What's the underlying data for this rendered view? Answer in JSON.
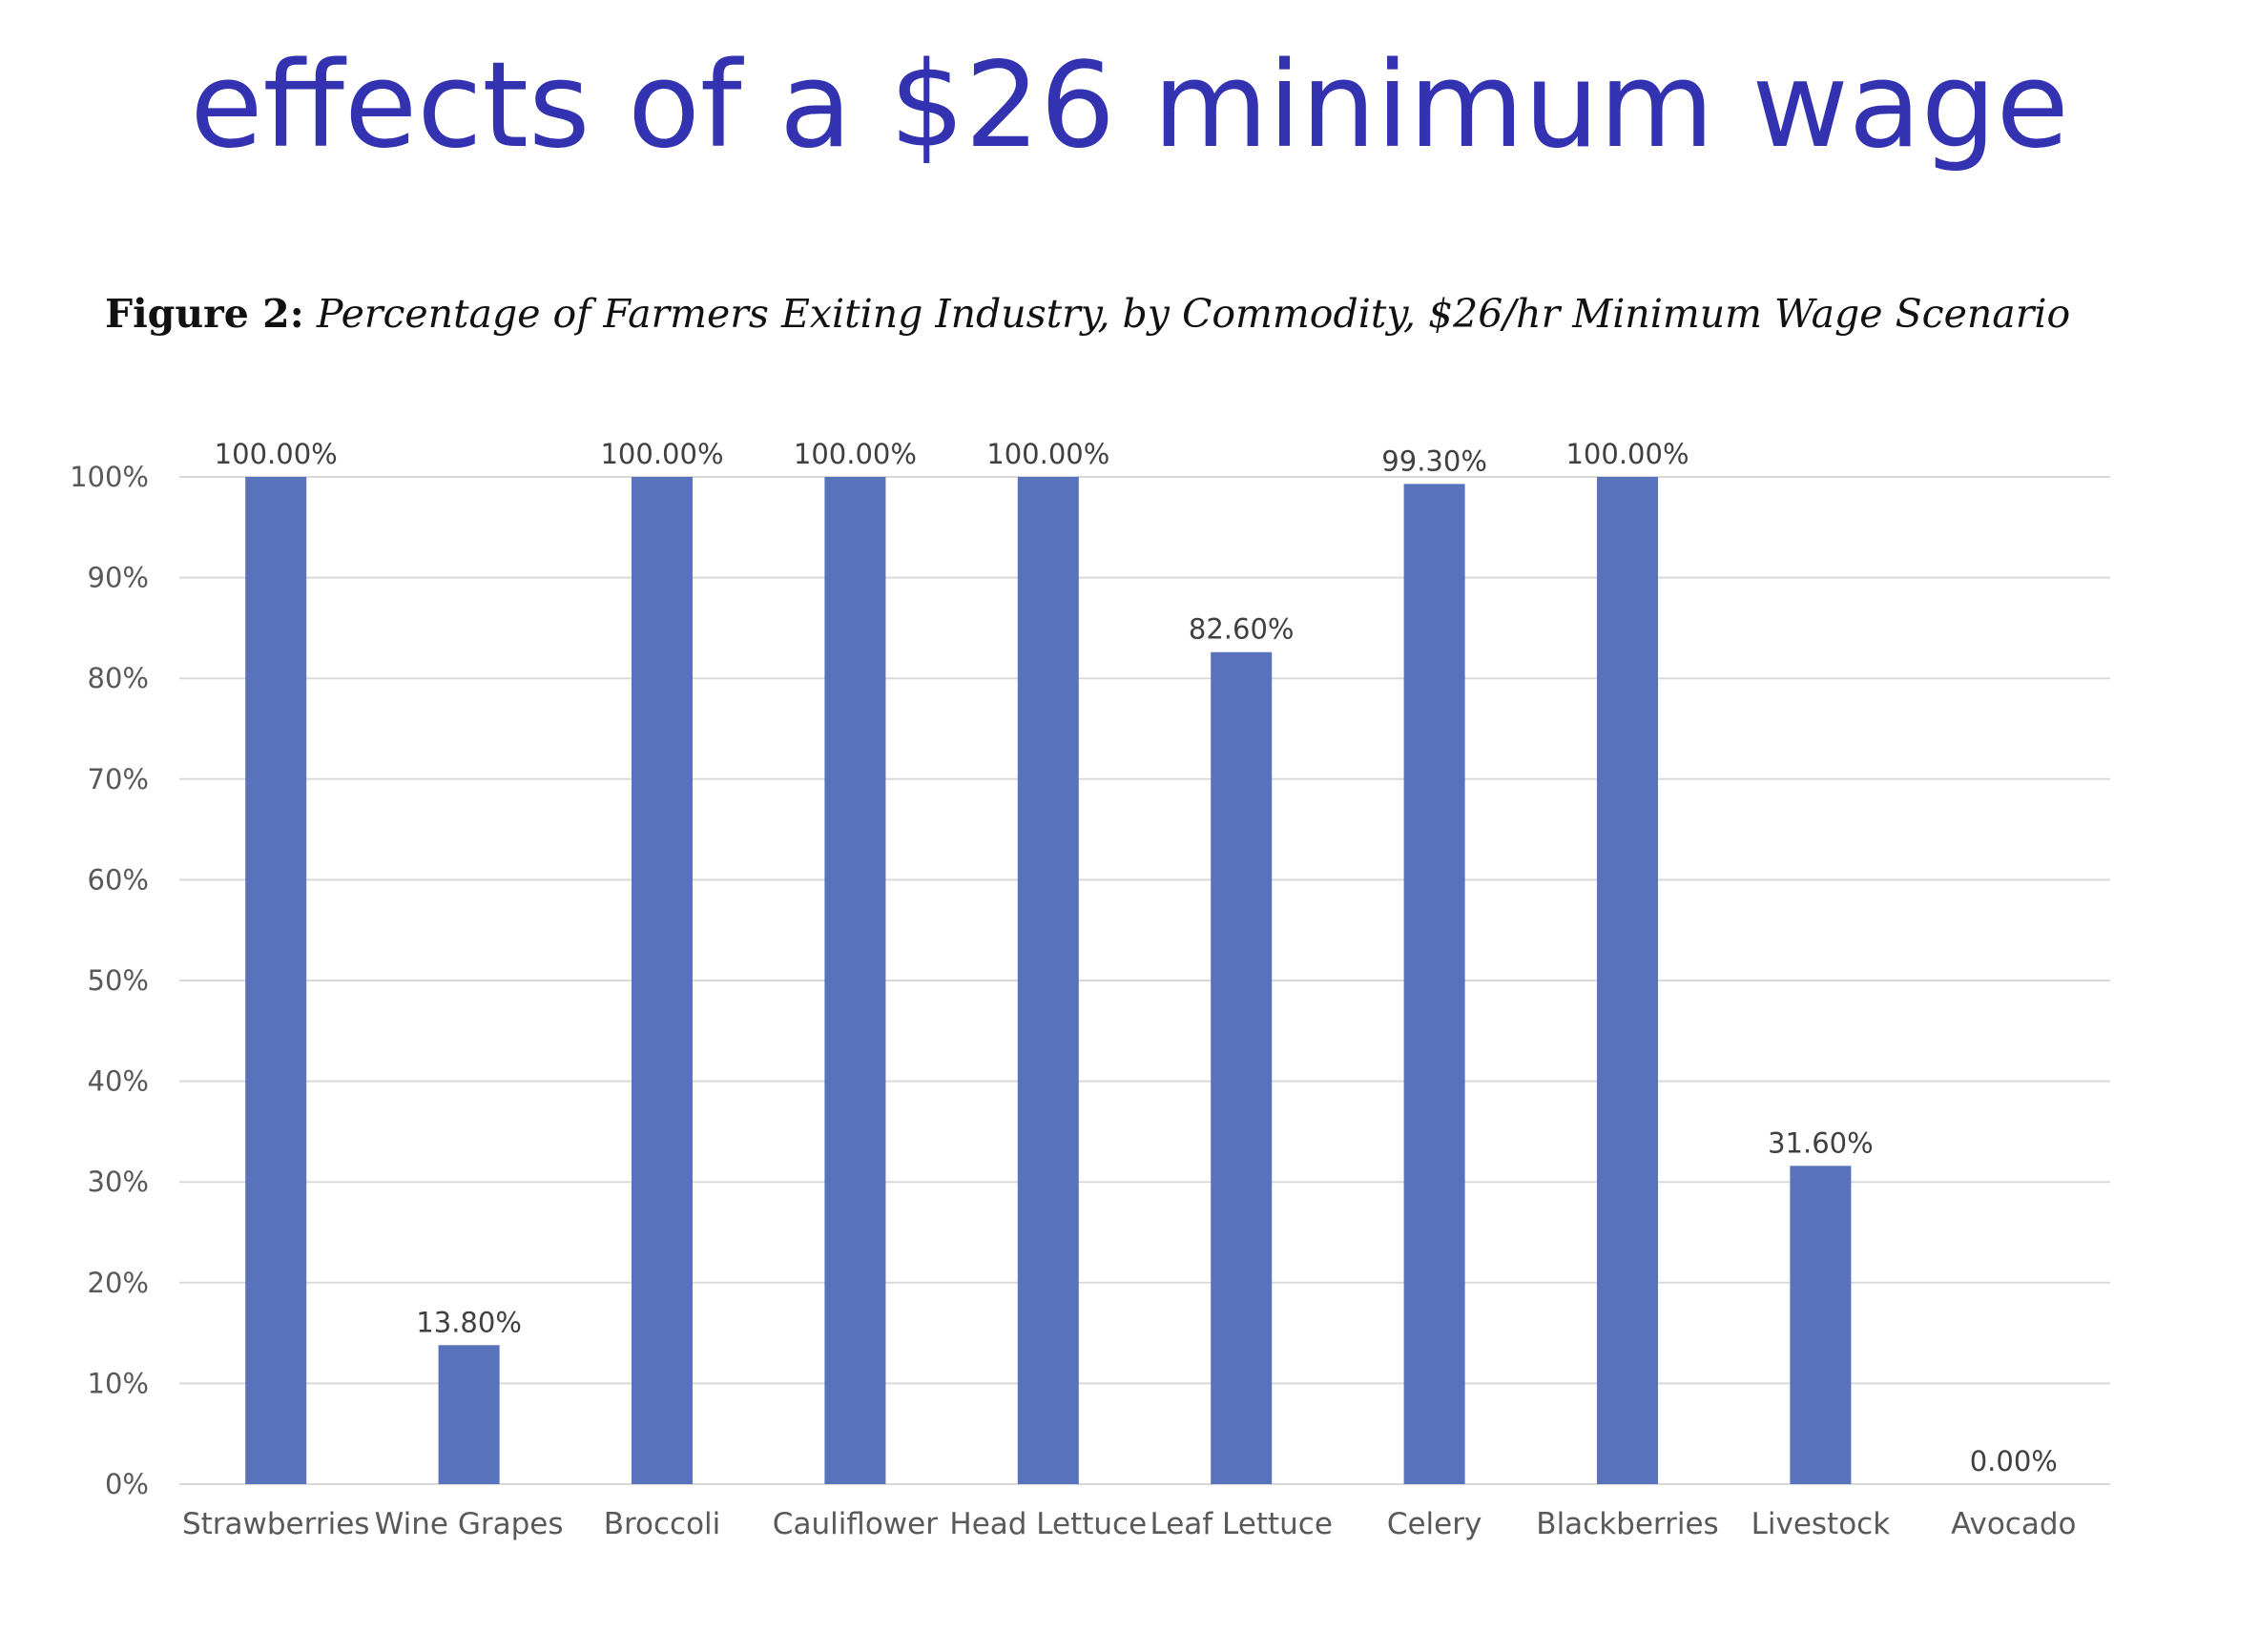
{
  "slide": {
    "title": "effects of a $26 minimum wage"
  },
  "figure": {
    "label": "Figure 2:",
    "caption": "Percentage of Farmers Exiting Industry, by Commodity, $26/hr Minimum Wage Scenario"
  },
  "chart_data": {
    "type": "bar",
    "title": "",
    "xlabel": "",
    "ylabel": "",
    "categories": [
      "Strawberries",
      "Wine Grapes",
      "Broccoli",
      "Cauliflower",
      "Head Lettuce",
      "Leaf Lettuce",
      "Celery",
      "Blackberries",
      "Livestock",
      "Avocado"
    ],
    "values": [
      100.0,
      13.8,
      100.0,
      100.0,
      100.0,
      82.6,
      99.3,
      100.0,
      31.6,
      0.0
    ],
    "value_labels": [
      "100.00%",
      "13.80%",
      "100.00%",
      "100.00%",
      "100.00%",
      "82.60%",
      "99.30%",
      "100.00%",
      "31.60%",
      "0.00%"
    ],
    "ylim": [
      0,
      100
    ],
    "yticks": [
      0,
      10,
      20,
      30,
      40,
      50,
      60,
      70,
      80,
      90,
      100
    ],
    "ytick_labels": [
      "0%",
      "10%",
      "20%",
      "30%",
      "40%",
      "50%",
      "60%",
      "70%",
      "80%",
      "90%",
      "100%"
    ],
    "grid": true,
    "legend": "none",
    "bar_color": "#5872bb",
    "grid_color": "#d9d9d9",
    "title_color": "#3333b2"
  }
}
